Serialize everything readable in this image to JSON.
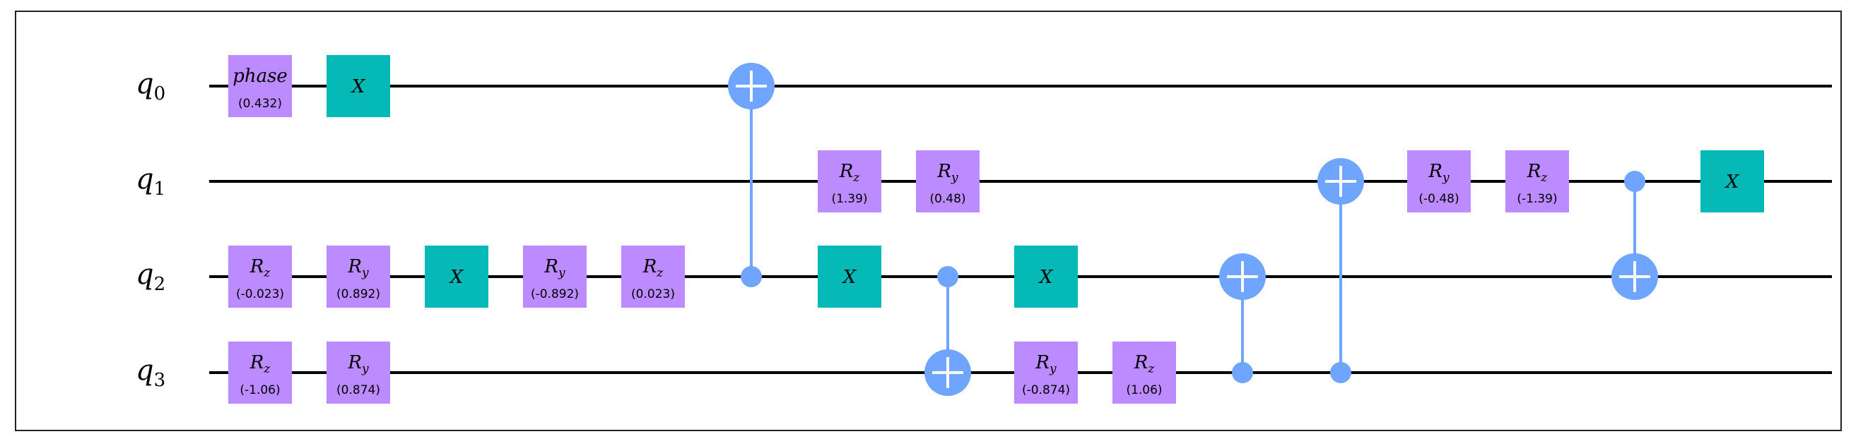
{
  "colors": {
    "param_gate": "#bb8bff",
    "x_gate": "#05bab6",
    "control": "#6fa4ff",
    "wire": "#000000"
  },
  "qubits": [
    {
      "base": "q",
      "index": "0"
    },
    {
      "base": "q",
      "index": "1"
    },
    {
      "base": "q",
      "index": "2"
    },
    {
      "base": "q",
      "index": "3"
    }
  ],
  "gates": [
    {
      "kind": "param",
      "qubit": 0,
      "col": 0,
      "base": "phase",
      "sub": "",
      "param": "(0.432)"
    },
    {
      "kind": "x",
      "qubit": 0,
      "col": 1,
      "base": "X",
      "sub": ""
    },
    {
      "kind": "param",
      "qubit": 2,
      "col": 0,
      "base": "R",
      "sub": "z",
      "param": "(-0.023)"
    },
    {
      "kind": "param",
      "qubit": 2,
      "col": 1,
      "base": "R",
      "sub": "y",
      "param": "(0.892)"
    },
    {
      "kind": "x",
      "qubit": 2,
      "col": 2,
      "base": "X",
      "sub": ""
    },
    {
      "kind": "param",
      "qubit": 2,
      "col": 3,
      "base": "R",
      "sub": "y",
      "param": "(-0.892)"
    },
    {
      "kind": "param",
      "qubit": 2,
      "col": 4,
      "base": "R",
      "sub": "z",
      "param": "(0.023)"
    },
    {
      "kind": "param",
      "qubit": 3,
      "col": 0,
      "base": "R",
      "sub": "z",
      "param": "(-1.06)"
    },
    {
      "kind": "param",
      "qubit": 3,
      "col": 1,
      "base": "R",
      "sub": "y",
      "param": "(0.874)"
    },
    {
      "kind": "param",
      "qubit": 1,
      "col": 6,
      "base": "R",
      "sub": "z",
      "param": "(1.39)"
    },
    {
      "kind": "param",
      "qubit": 1,
      "col": 7,
      "base": "R",
      "sub": "y",
      "param": "(0.48)"
    },
    {
      "kind": "x",
      "qubit": 2,
      "col": 6,
      "base": "X",
      "sub": ""
    },
    {
      "kind": "x",
      "qubit": 2,
      "col": 8,
      "base": "X",
      "sub": ""
    },
    {
      "kind": "param",
      "qubit": 3,
      "col": 8,
      "base": "R",
      "sub": "y",
      "param": "(-0.874)"
    },
    {
      "kind": "param",
      "qubit": 3,
      "col": 9,
      "base": "R",
      "sub": "z",
      "param": "(1.06)"
    },
    {
      "kind": "param",
      "qubit": 1,
      "col": 12,
      "base": "R",
      "sub": "y",
      "param": "(-0.48)"
    },
    {
      "kind": "param",
      "qubit": 1,
      "col": 13,
      "base": "R",
      "sub": "z",
      "param": "(-1.39)"
    },
    {
      "kind": "x",
      "qubit": 1,
      "col": 15,
      "base": "X",
      "sub": ""
    }
  ],
  "cnots": [
    {
      "col": 5,
      "control": 2,
      "target": 0
    },
    {
      "col": 7,
      "control": 2,
      "target": 3
    },
    {
      "col": 10,
      "control": 3,
      "target": 2
    },
    {
      "col": 11,
      "control": 3,
      "target": 1
    },
    {
      "col": 14,
      "control": 1,
      "target": 2
    }
  ]
}
